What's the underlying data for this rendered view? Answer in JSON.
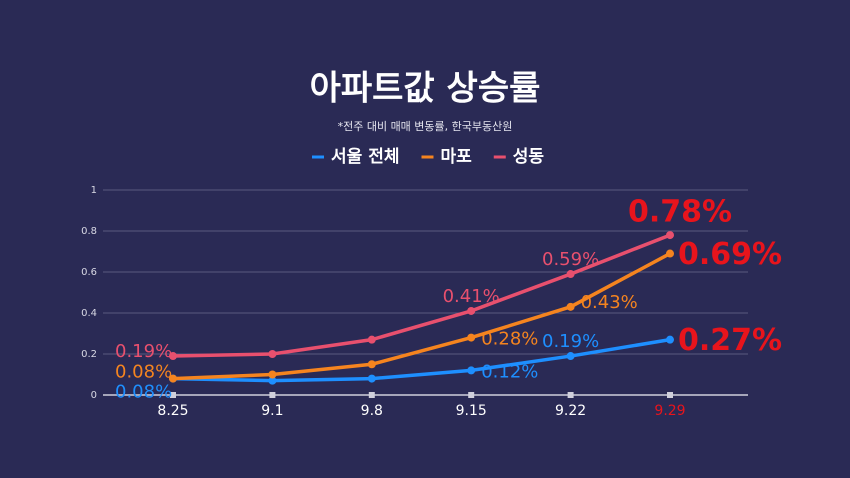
{
  "chart_data": {
    "type": "line",
    "title": "아파트값 상승률",
    "subtitle": "*전주 대비 매매 변동률, 한국부동산원",
    "categories": [
      "8.25",
      "9.1",
      "9.8",
      "9.15",
      "9.22",
      "9.29"
    ],
    "series": [
      {
        "name": "서울 전체",
        "color": "#1e8fff",
        "values": [
          0.08,
          0.07,
          0.08,
          0.12,
          0.19,
          0.27
        ],
        "value_labels": [
          "0.08%",
          null,
          null,
          "0.12%",
          "0.19%",
          "0.27%"
        ]
      },
      {
        "name": "마포",
        "color": "#f5841f",
        "values": [
          0.08,
          0.1,
          0.15,
          0.28,
          0.43,
          0.69
        ],
        "value_labels": [
          "0.08%",
          null,
          null,
          "0.28%",
          "0.43%",
          "0.69%"
        ]
      },
      {
        "name": "성동",
        "color": "#e8506e",
        "values": [
          0.19,
          0.2,
          0.27,
          0.41,
          0.59,
          0.78
        ],
        "value_labels": [
          "0.19%",
          null,
          null,
          "0.41%",
          "0.59%",
          "0.78%"
        ]
      }
    ],
    "highlight_color": "#e8141c",
    "ylim": [
      0,
      1
    ],
    "yticks": [
      0,
      0.2,
      0.4,
      0.6,
      0.8,
      1
    ],
    "grid": true,
    "legend": "top"
  }
}
